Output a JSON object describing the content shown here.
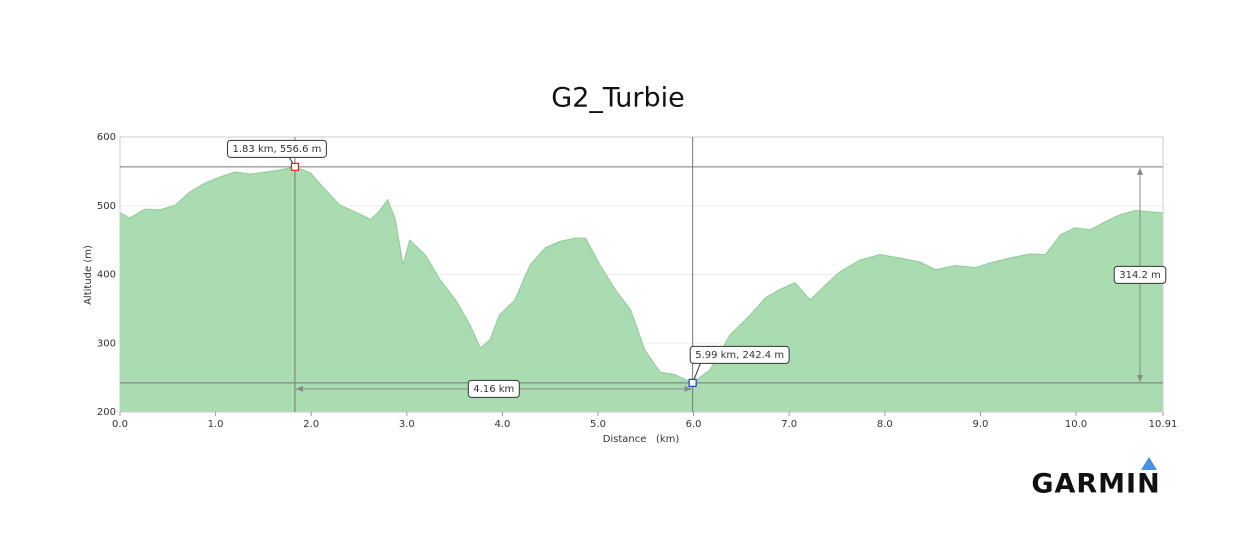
{
  "chart_data": {
    "type": "area",
    "title": "G2_Turbie",
    "x_label": "Distance   (km)",
    "y_label": "Altitude (m)",
    "color": "#a9dcb0",
    "line_color": "#8fca97",
    "grid": true,
    "x": [
      0,
      0.1,
      0.26,
      0.42,
      0.58,
      0.73,
      0.89,
      1.05,
      1.2,
      1.36,
      1.52,
      1.67,
      1.83,
      1.99,
      2.15,
      2.3,
      2.46,
      2.62,
      2.7,
      2.8,
      2.88,
      2.96,
      3.03,
      3.19,
      3.35,
      3.51,
      3.66,
      3.77,
      3.87,
      3.97,
      4.13,
      4.29,
      4.45,
      4.6,
      4.76,
      4.87,
      5.02,
      5.18,
      5.34,
      5.49,
      5.65,
      5.81,
      5.99,
      6.17,
      6.38,
      6.59,
      6.75,
      6.9,
      7.06,
      7.22,
      7.38,
      7.53,
      7.74,
      7.95,
      8.16,
      8.37,
      8.53,
      8.74,
      8.95,
      9.1,
      9.31,
      9.52,
      9.68,
      9.84,
      9.99,
      10.15,
      10.31,
      10.46,
      10.62,
      10.88,
      10.91
    ],
    "values": [
      490,
      482,
      495,
      494,
      501,
      520,
      533,
      542,
      549,
      546,
      549,
      552,
      556.6,
      548,
      523,
      501,
      491,
      480,
      490,
      509,
      480,
      414,
      450,
      429,
      392,
      363,
      327,
      293,
      305,
      341,
      363,
      414,
      439,
      448,
      453,
      453,
      414,
      378,
      349,
      290,
      258,
      254,
      242.4,
      261,
      312,
      341,
      366,
      378,
      388,
      363,
      385,
      404,
      421,
      429,
      424,
      418,
      407,
      413,
      410,
      417,
      424,
      430,
      429,
      458,
      468,
      465,
      477,
      487,
      493,
      490,
      490
    ],
    "xlim": [
      0,
      10.91
    ],
    "ylim": [
      200,
      600
    ],
    "xticks": [
      {
        "value": 0,
        "label": "0.0"
      },
      {
        "value": 1,
        "label": "1.0"
      },
      {
        "value": 2,
        "label": "2.0"
      },
      {
        "value": 3,
        "label": "3.0"
      },
      {
        "value": 4,
        "label": "4.0"
      },
      {
        "value": 5,
        "label": "5.0"
      },
      {
        "value": 6,
        "label": "6.0"
      },
      {
        "value": 7,
        "label": "7.0"
      },
      {
        "value": 8,
        "label": "8.0"
      },
      {
        "value": 9,
        "label": "9.0"
      },
      {
        "value": 10,
        "label": "10.0"
      },
      10.91
    ],
    "yticks": [
      200,
      300,
      400,
      500,
      600
    ],
    "markers": [
      {
        "x": 1.83,
        "y": 556.6,
        "label": "1.83 km, 556.6 m",
        "color": "#d62728"
      },
      {
        "x": 5.99,
        "y": 242.4,
        "label": "5.99 km, 242.4 m",
        "color": "#1f3fbf"
      }
    ],
    "measures": [
      {
        "label": "4.16 km"
      },
      {
        "label": "314.2 m"
      }
    ],
    "brand": "GARMIN"
  }
}
